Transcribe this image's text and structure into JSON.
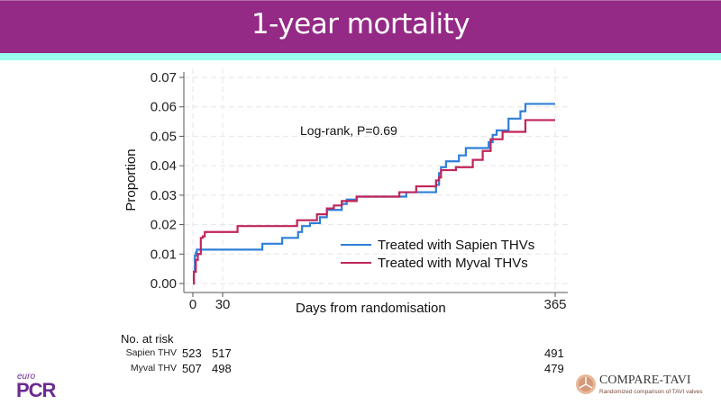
{
  "header": {
    "title": "1-year mortality"
  },
  "chart_data": {
    "type": "line",
    "subtype": "kaplan-meier-step",
    "title": "",
    "xlabel": "Days from randomisation",
    "ylabel": "Proportion",
    "xlim": [
      0,
      365
    ],
    "ylim": [
      0,
      0.07
    ],
    "xticks": [
      0,
      30,
      365
    ],
    "xtick_labels": [
      "0",
      "30",
      "365"
    ],
    "yticks": [
      0,
      0.01,
      0.02,
      0.03,
      0.04,
      0.05,
      0.06,
      0.07
    ],
    "ytick_labels": [
      "0.00",
      "0.01",
      "0.02",
      "0.03",
      "0.04",
      "0.05",
      "0.06",
      "0.07"
    ],
    "grid": true,
    "legend_position": "bottom-right",
    "annotation": "Log-rank, P=0.69",
    "series": [
      {
        "name": "Treated with Sapien THVs",
        "color": "#2f7fd8",
        "x": [
          0,
          1,
          2,
          3,
          4,
          70,
          90,
          106,
          110,
          118,
          128,
          135,
          150,
          155,
          165,
          215,
          245,
          248,
          250,
          255,
          268,
          275,
          280,
          298,
          302,
          306,
          315,
          318,
          330,
          335,
          365
        ],
        "y": [
          0,
          0.004,
          0.0095,
          0.0105,
          0.0115,
          0.0135,
          0.0155,
          0.0175,
          0.0195,
          0.0205,
          0.0225,
          0.025,
          0.027,
          0.0285,
          0.0295,
          0.031,
          0.0335,
          0.0375,
          0.0395,
          0.0415,
          0.0435,
          0.046,
          0.046,
          0.048,
          0.0505,
          0.052,
          0.052,
          0.056,
          0.0585,
          0.061,
          0.061
        ]
      },
      {
        "name": "Treated with Myval THVs",
        "color": "#c0255a",
        "x": [
          0,
          1,
          3,
          5,
          8,
          10,
          12,
          45,
          105,
          125,
          135,
          142,
          150,
          165,
          200,
          208,
          225,
          245,
          248,
          250,
          265,
          282,
          292,
          300,
          312,
          335,
          365
        ],
        "y": [
          0,
          0.004,
          0.008,
          0.01,
          0.0155,
          0.016,
          0.0175,
          0.0195,
          0.0215,
          0.0235,
          0.0255,
          0.0265,
          0.028,
          0.0295,
          0.0295,
          0.031,
          0.033,
          0.035,
          0.036,
          0.0385,
          0.0395,
          0.042,
          0.045,
          0.049,
          0.0515,
          0.0555,
          0.0555
        ]
      }
    ]
  },
  "risk_table": {
    "title": "No. at risk",
    "columns": [
      "0",
      "30",
      "365"
    ],
    "rows": [
      {
        "label": "Sapien THV",
        "values": [
          "523",
          "517",
          "491"
        ]
      },
      {
        "label": "Myval THV",
        "values": [
          "507",
          "498",
          "479"
        ]
      }
    ]
  },
  "logos": {
    "left": {
      "small": "euro",
      "big": "PCR"
    },
    "right": {
      "name": "COMPARE-TAVI",
      "tagline": "Randomized comparison of TAVI valves"
    }
  }
}
